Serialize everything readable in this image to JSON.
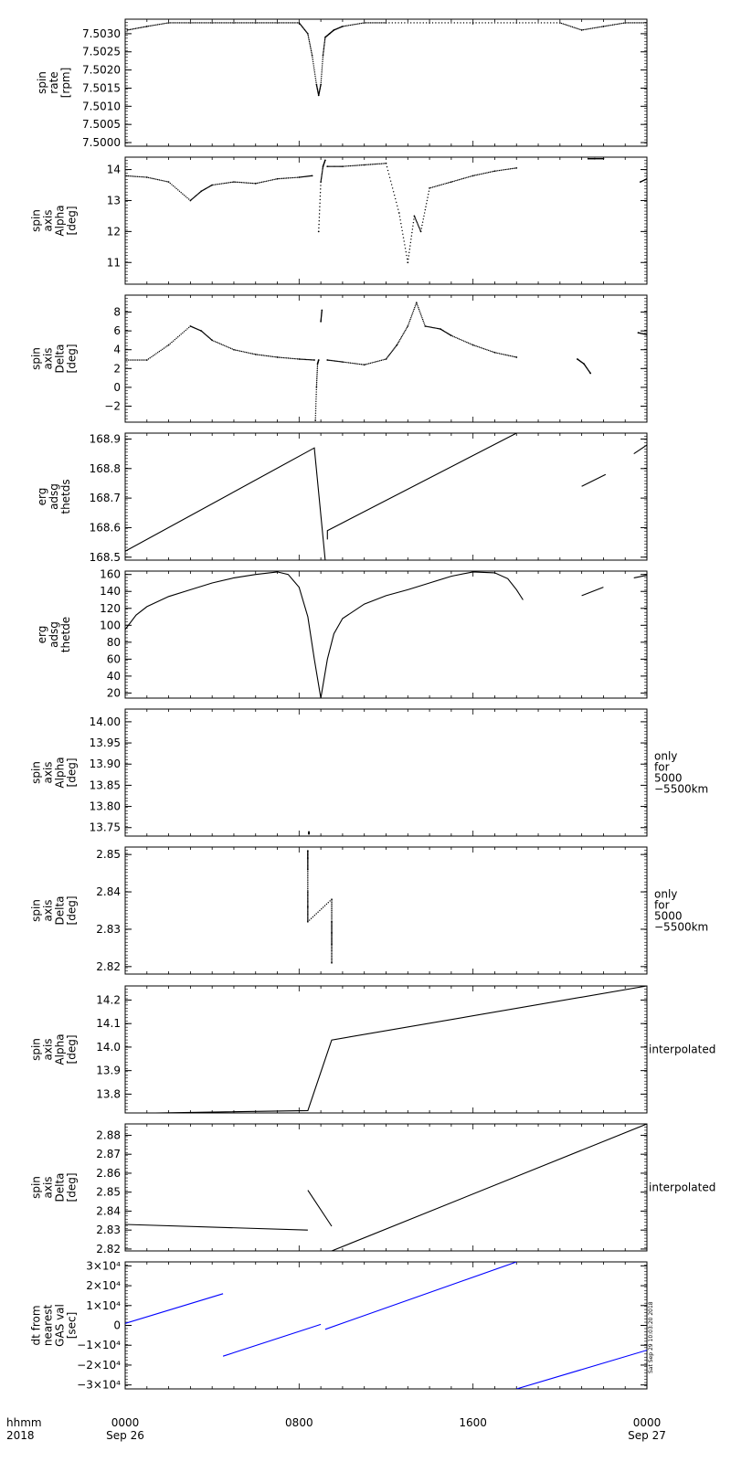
{
  "footer": {
    "time_label": "hhmm",
    "year_label": "2018",
    "x_ticks": [
      {
        "t": 0,
        "time": "0000",
        "date": "Sep 26"
      },
      {
        "t": 8,
        "time": "0800",
        "date": ""
      },
      {
        "t": 16,
        "time": "1600",
        "date": ""
      },
      {
        "t": 24,
        "time": "0000",
        "date": "Sep 27"
      }
    ],
    "timestamp": "Sat Sep 29 10:03:20 2018"
  },
  "chart_data": [
    {
      "type": "scatter",
      "ylabel": [
        "spin",
        "rate",
        "[rpm]"
      ],
      "ylim": [
        7.4999,
        7.5034
      ],
      "yticks": [
        7.5,
        7.5005,
        7.501,
        7.5015,
        7.502,
        7.5025,
        7.503
      ],
      "tick_labels": [
        "7.5000",
        "7.5005",
        "7.5010",
        "7.5015",
        "7.5020",
        "7.5025",
        "7.5030"
      ],
      "side_label": [],
      "color": "#000000",
      "xlim": [
        0,
        24
      ],
      "series": [
        {
          "x": [
            0.1,
            1,
            2,
            3,
            4,
            5,
            6,
            7,
            8,
            8.4,
            8.6,
            8.8,
            8.9,
            9.0,
            9.1,
            9.2,
            9.4,
            9.6,
            10,
            11,
            12,
            14,
            16,
            18,
            20,
            21,
            22,
            23,
            24
          ],
          "y": [
            7.5031,
            7.5032,
            7.5033,
            7.5033,
            7.5033,
            7.5033,
            7.5033,
            7.5033,
            7.5033,
            7.503,
            7.5024,
            7.5016,
            7.5013,
            7.5016,
            7.5024,
            7.5029,
            7.503,
            7.5031,
            7.5032,
            7.5033,
            7.5033,
            7.5033,
            7.5033,
            7.5033,
            7.5033,
            7.5031,
            7.5032,
            7.5033,
            7.5033
          ]
        }
      ]
    },
    {
      "type": "scatter",
      "ylabel": [
        "spin",
        "axis",
        "Alpha",
        "[deg]"
      ],
      "ylim": [
        10.3,
        14.4
      ],
      "yticks": [
        11,
        12,
        13,
        14
      ],
      "tick_labels": [
        "11",
        "12",
        "13",
        "14"
      ],
      "side_label": [],
      "color": "#000000",
      "xlim": [
        0,
        24
      ],
      "series": [
        {
          "x": [
            0,
            1,
            2,
            3,
            3.5,
            4,
            5,
            6,
            7,
            8,
            8.6
          ],
          "y": [
            13.8,
            13.75,
            13.6,
            13.0,
            13.3,
            13.5,
            13.6,
            13.55,
            13.7,
            13.75,
            13.8
          ]
        },
        {
          "x": [
            8.9,
            9.0,
            9.1,
            9.2
          ],
          "y": [
            12.0,
            13.6,
            14.1,
            14.3
          ]
        },
        {
          "x": [
            9.3,
            10,
            11,
            12,
            12.6,
            13,
            13.3,
            13.6,
            14,
            15,
            16,
            17,
            18
          ],
          "y": [
            14.1,
            14.1,
            14.15,
            14.2,
            12.6,
            11.0,
            12.5,
            12.0,
            13.4,
            13.6,
            13.8,
            13.95,
            14.05
          ]
        },
        {
          "x": [
            21.3,
            21.6,
            22.0
          ],
          "y": [
            14.35,
            14.35,
            14.35
          ]
        },
        {
          "x": [
            23.7,
            24.0
          ],
          "y": [
            13.6,
            13.7
          ]
        }
      ]
    },
    {
      "type": "scatter",
      "ylabel": [
        "spin",
        "axis",
        "Delta",
        "[deg]"
      ],
      "ylim": [
        -3.7,
        9.8
      ],
      "yticks": [
        -2,
        0,
        2,
        4,
        6,
        8
      ],
      "tick_labels": [
        "−2",
        "0",
        "2",
        "4",
        "6",
        "8"
      ],
      "side_label": [],
      "color": "#000000",
      "xlim": [
        0,
        24
      ],
      "series": [
        {
          "x": [
            0,
            1,
            2,
            3,
            3.5,
            4,
            5,
            6,
            7,
            8,
            8.7
          ],
          "y": [
            2.9,
            2.9,
            4.5,
            6.5,
            6.0,
            5.0,
            4.0,
            3.5,
            3.2,
            3.0,
            2.9
          ]
        },
        {
          "x": [
            8.75,
            8.8,
            8.85,
            8.9
          ],
          "y": [
            -3.5,
            0,
            2.5,
            2.9
          ]
        },
        {
          "x": [
            9.0,
            9.05
          ],
          "y": [
            7.0,
            8.2
          ]
        },
        {
          "x": [
            9.3,
            10,
            11,
            12,
            12.5,
            13,
            13.4,
            13.8,
            14.5,
            15,
            16,
            17,
            18
          ],
          "y": [
            2.9,
            2.7,
            2.4,
            3.0,
            4.5,
            6.5,
            9.0,
            6.5,
            6.2,
            5.5,
            4.5,
            3.7,
            3.2
          ]
        },
        {
          "x": [
            20.8,
            21.1,
            21.4
          ],
          "y": [
            3.0,
            2.5,
            1.5
          ]
        },
        {
          "x": [
            23.6,
            24.0
          ],
          "y": [
            5.8,
            5.6
          ]
        }
      ]
    },
    {
      "type": "line",
      "ylabel": [
        "erg",
        "adsg",
        "thetds"
      ],
      "ylim": [
        168.49,
        168.92
      ],
      "yticks": [
        168.5,
        168.6,
        168.7,
        168.8,
        168.9
      ],
      "tick_labels": [
        "168.5",
        "168.6",
        "168.7",
        "168.8",
        "168.9"
      ],
      "side_label": [],
      "color": "#000000",
      "xlim": [
        0,
        24
      ],
      "series": [
        {
          "x": [
            0,
            8.7,
            9.2
          ],
          "y": [
            168.52,
            168.87,
            168.49
          ]
        },
        {
          "x": [
            9.3,
            9.3,
            18.0
          ],
          "y": [
            168.56,
            168.59,
            168.92
          ]
        },
        {
          "x": [
            21.0,
            22.1
          ],
          "y": [
            168.74,
            168.78
          ]
        },
        {
          "x": [
            23.4,
            24.0
          ],
          "y": [
            168.85,
            168.88
          ]
        }
      ]
    },
    {
      "type": "line",
      "ylabel": [
        "erg",
        "adsg",
        "thetde"
      ],
      "ylim": [
        14,
        164
      ],
      "yticks": [
        20,
        40,
        60,
        80,
        100,
        120,
        140,
        160
      ],
      "tick_labels": [
        "20",
        "40",
        "60",
        "80",
        "100",
        "120",
        "140",
        "160"
      ],
      "side_label": [],
      "color": "#000000",
      "xlim": [
        0,
        24
      ],
      "series": [
        {
          "x": [
            0,
            0.5,
            1,
            2,
            3,
            4,
            5,
            6,
            7,
            7.5,
            8,
            8.4,
            8.7,
            9.0
          ],
          "y": [
            95,
            112,
            122,
            134,
            142,
            150,
            156,
            160,
            163,
            160,
            145,
            110,
            60,
            14
          ]
        },
        {
          "x": [
            9.0,
            9.3,
            9.6,
            10,
            11,
            12,
            13,
            14,
            15,
            16,
            17,
            17.6,
            18.0,
            18.3
          ],
          "y": [
            14,
            60,
            90,
            108,
            125,
            135,
            142,
            150,
            158,
            163,
            162,
            155,
            142,
            130
          ]
        },
        {
          "x": [
            21.0,
            22.0
          ],
          "y": [
            135,
            145
          ]
        },
        {
          "x": [
            23.4,
            24.0
          ],
          "y": [
            156,
            159
          ]
        }
      ]
    },
    {
      "type": "scatter",
      "ylabel": [
        "spin",
        "axis",
        "Alpha",
        "[deg]"
      ],
      "ylim": [
        13.73,
        14.03
      ],
      "yticks": [
        13.75,
        13.8,
        13.85,
        13.9,
        13.95,
        14.0
      ],
      "tick_labels": [
        "13.75",
        "13.80",
        "13.85",
        "13.90",
        "13.95",
        "14.00"
      ],
      "side_label": [
        "only",
        "for",
        "5000",
        "−5500km"
      ],
      "color": "#000000",
      "xlim": [
        0,
        24
      ],
      "series": [
        {
          "x": [
            8.45,
            8.45
          ],
          "y": [
            13.735,
            13.74
          ]
        }
      ]
    },
    {
      "type": "scatter",
      "ylabel": [
        "spin",
        "axis",
        "Delta",
        "[deg]"
      ],
      "ylim": [
        2.818,
        2.852
      ],
      "yticks": [
        2.82,
        2.83,
        2.84,
        2.85
      ],
      "tick_labels": [
        "2.82",
        "2.83",
        "2.84",
        "2.85"
      ],
      "side_label": [
        "only",
        "for",
        "5000",
        "−5500km"
      ],
      "color": "#000000",
      "xlim": [
        0,
        24
      ],
      "series": [
        {
          "x": [
            8.4,
            8.4,
            8.4,
            8.4,
            8.4,
            8.4,
            9.5,
            9.5,
            9.5,
            9.5,
            9.5
          ],
          "y": [
            2.851,
            2.849,
            2.846,
            2.84,
            2.836,
            2.832,
            2.838,
            2.832,
            2.829,
            2.826,
            2.821
          ]
        }
      ]
    },
    {
      "type": "line",
      "ylabel": [
        "spin",
        "axis",
        "Alpha",
        "[deg]"
      ],
      "ylim": [
        13.72,
        14.26
      ],
      "yticks": [
        13.8,
        13.9,
        14.0,
        14.1,
        14.2
      ],
      "tick_labels": [
        "13.8",
        "13.9",
        "14.0",
        "14.1",
        "14.2"
      ],
      "side_label": [
        "interpolated"
      ],
      "color": "#000000",
      "xlim": [
        0,
        24
      ],
      "series": [
        {
          "x": [
            1.4,
            8.4,
            9.5,
            24.0
          ],
          "y": [
            13.72,
            13.73,
            14.03,
            14.26
          ]
        }
      ]
    },
    {
      "type": "line",
      "ylabel": [
        "spin",
        "axis",
        "Delta",
        "[deg]"
      ],
      "ylim": [
        2.819,
        2.886
      ],
      "yticks": [
        2.82,
        2.83,
        2.84,
        2.85,
        2.86,
        2.87,
        2.88
      ],
      "tick_labels": [
        "2.82",
        "2.83",
        "2.84",
        "2.85",
        "2.86",
        "2.87",
        "2.88"
      ],
      "side_label": [
        "interpolated"
      ],
      "color": "#000000",
      "xlim": [
        0,
        24
      ],
      "series": [
        {
          "x": [
            0,
            8.4
          ],
          "y": [
            2.833,
            2.83
          ]
        },
        {
          "x": [
            8.4,
            9.5
          ],
          "y": [
            2.851,
            2.832
          ]
        },
        {
          "x": [
            9.5,
            24.0
          ],
          "y": [
            2.819,
            2.886
          ]
        }
      ]
    },
    {
      "type": "line",
      "ylabel": [
        "dt from",
        "nearest",
        "GAS val",
        "[sec]"
      ],
      "ylim": [
        -32000,
        32000
      ],
      "yticks": [
        -30000,
        -20000,
        -10000,
        0,
        10000,
        20000,
        30000
      ],
      "tick_labels": [
        "−3×10⁴",
        "−2×10⁴",
        "−1×10⁴",
        "0",
        "1×10⁴",
        "2×10⁴",
        "3×10⁴"
      ],
      "side_label": [],
      "color": "#0000ff",
      "xlim": [
        0,
        24
      ],
      "series": [
        {
          "x": [
            0,
            4.5
          ],
          "y": [
            1000,
            16000
          ]
        },
        {
          "x": [
            4.5,
            9.0
          ],
          "y": [
            -15500,
            500
          ]
        },
        {
          "x": [
            9.2,
            18.0
          ],
          "y": [
            -2000,
            32000
          ]
        },
        {
          "x": [
            18.0,
            24.0
          ],
          "y": [
            -32000,
            -12500
          ]
        }
      ]
    }
  ]
}
